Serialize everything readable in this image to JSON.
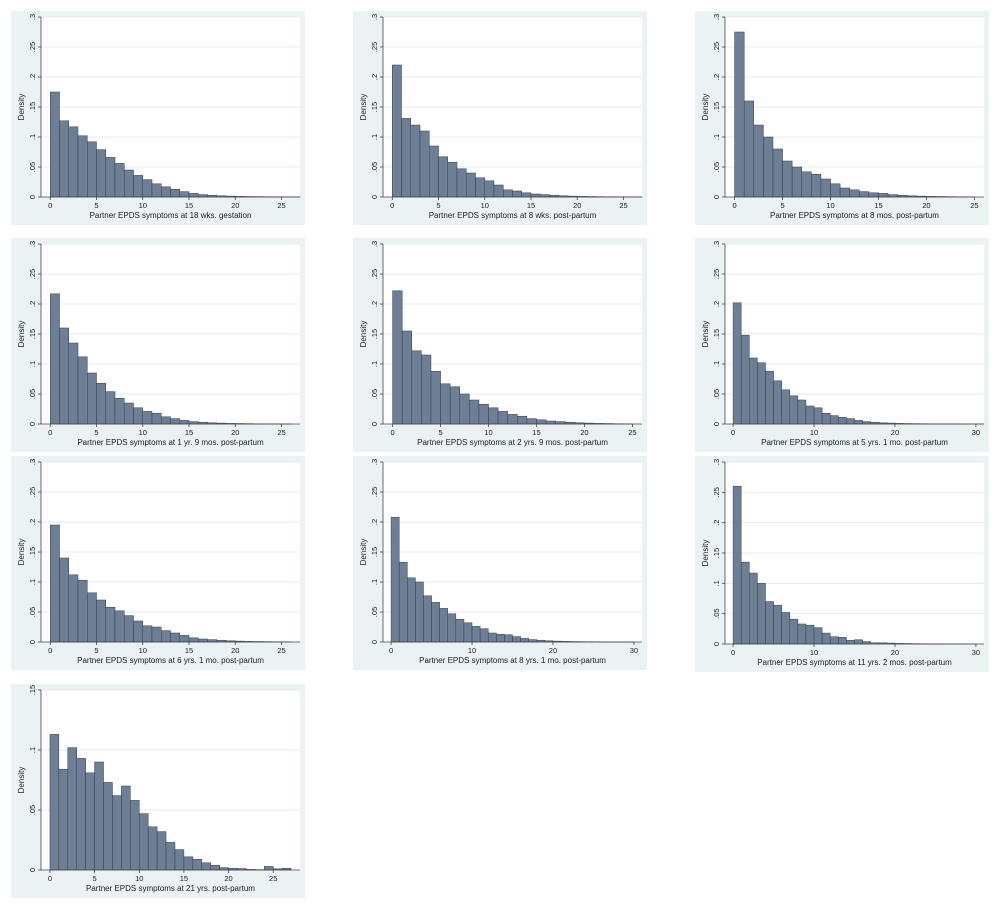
{
  "chart_data": [
    {
      "type": "bar",
      "xlabel": "Partner EPDS symptoms at 18 wks. gestation",
      "ylabel": "Density",
      "ylim": [
        0,
        0.3
      ],
      "yticks": [
        0,
        0.05,
        0.1,
        0.15,
        0.2,
        0.25,
        0.3
      ],
      "ytick_labels": [
        "0",
        ".05",
        ".1",
        ".15",
        ".2",
        ".25",
        ".3"
      ],
      "xlim": [
        -1,
        27
      ],
      "xticks": [
        0,
        5,
        10,
        15,
        20,
        25
      ],
      "bin_width": 1,
      "bin_start": 0,
      "values": [
        0.175,
        0.127,
        0.117,
        0.102,
        0.092,
        0.079,
        0.066,
        0.056,
        0.045,
        0.036,
        0.029,
        0.022,
        0.017,
        0.013,
        0.009,
        0.006,
        0.004,
        0.003,
        0.002,
        0.0015,
        0.001,
        0.0008,
        0.0006,
        0.0004,
        0.0003,
        0.0002,
        0.0001
      ]
    },
    {
      "type": "bar",
      "xlabel": "Partner EPDS symptoms at 8 wks. post-partum",
      "ylabel": "Density",
      "ylim": [
        0,
        0.3
      ],
      "yticks": [
        0,
        0.05,
        0.1,
        0.15,
        0.2,
        0.25,
        0.3
      ],
      "ytick_labels": [
        "0",
        ".05",
        ".1",
        ".15",
        ".2",
        ".25",
        ".3"
      ],
      "xlim": [
        -1,
        27
      ],
      "xticks": [
        0,
        5,
        10,
        15,
        20,
        25
      ],
      "bin_width": 1,
      "bin_start": 0,
      "values": [
        0.22,
        0.131,
        0.12,
        0.11,
        0.085,
        0.067,
        0.058,
        0.047,
        0.04,
        0.032,
        0.027,
        0.02,
        0.012,
        0.01,
        0.007,
        0.005,
        0.004,
        0.003,
        0.002,
        0.0015,
        0.001,
        0.0008,
        0.0006,
        0.0004,
        0.0003,
        0.0002,
        0.0001
      ]
    },
    {
      "type": "bar",
      "xlabel": "Partner EPDS symptoms at 8 mos. post-partum",
      "ylabel": "Density",
      "ylim": [
        0,
        0.3
      ],
      "yticks": [
        0,
        0.05,
        0.1,
        0.15,
        0.2,
        0.25,
        0.3
      ],
      "ytick_labels": [
        "0",
        ".05",
        ".1",
        ".15",
        ".2",
        ".25",
        ".3"
      ],
      "xlim": [
        -1,
        26
      ],
      "xticks": [
        0,
        5,
        10,
        15,
        20,
        25
      ],
      "bin_width": 1,
      "bin_start": 0,
      "values": [
        0.275,
        0.16,
        0.12,
        0.1,
        0.08,
        0.06,
        0.05,
        0.042,
        0.038,
        0.03,
        0.022,
        0.015,
        0.012,
        0.009,
        0.007,
        0.006,
        0.004,
        0.003,
        0.002,
        0.0015,
        0.001,
        0.0008,
        0.0006,
        0.0004,
        0.0002
      ]
    },
    {
      "type": "bar",
      "xlabel": "Partner EPDS symptoms at 1 yr. 9 mos. post-partum",
      "ylabel": "Density",
      "ylim": [
        0,
        0.3
      ],
      "yticks": [
        0,
        0.05,
        0.1,
        0.15,
        0.2,
        0.25,
        0.3
      ],
      "ytick_labels": [
        "0",
        ".05",
        ".1",
        ".15",
        ".2",
        ".25",
        ".3"
      ],
      "xlim": [
        -1,
        27
      ],
      "xticks": [
        0,
        5,
        10,
        15,
        20,
        25
      ],
      "bin_width": 1,
      "bin_start": 0,
      "values": [
        0.217,
        0.16,
        0.135,
        0.112,
        0.085,
        0.068,
        0.054,
        0.043,
        0.035,
        0.027,
        0.021,
        0.018,
        0.012,
        0.009,
        0.006,
        0.004,
        0.003,
        0.002,
        0.0015,
        0.001,
        0.0008,
        0.0006,
        0.0004,
        0.0003,
        0.0002,
        0.0001
      ]
    },
    {
      "type": "bar",
      "xlabel": "Partner EPDS symptoms at 2 yrs. 9 mos. post-partum",
      "ylabel": "Density",
      "ylim": [
        0,
        0.3
      ],
      "yticks": [
        0,
        0.05,
        0.1,
        0.15,
        0.2,
        0.25,
        0.3
      ],
      "ytick_labels": [
        "0",
        ".05",
        ".1",
        ".15",
        ".2",
        ".25",
        ".3"
      ],
      "xlim": [
        -1,
        26
      ],
      "xticks": [
        0,
        5,
        10,
        15,
        20,
        25
      ],
      "bin_width": 1,
      "bin_start": 0,
      "values": [
        0.222,
        0.155,
        0.122,
        0.115,
        0.088,
        0.067,
        0.062,
        0.05,
        0.04,
        0.033,
        0.027,
        0.021,
        0.016,
        0.013,
        0.009,
        0.007,
        0.005,
        0.004,
        0.003,
        0.002,
        0.0015,
        0.001,
        0.0008,
        0.0005,
        0.0003
      ]
    },
    {
      "type": "bar",
      "xlabel": "Partner EPDS symptoms at 5 yrs. 1 mo. post-partum",
      "ylabel": "Density",
      "ylim": [
        0,
        0.3
      ],
      "yticks": [
        0,
        0.05,
        0.1,
        0.15,
        0.2,
        0.25,
        0.3
      ],
      "ytick_labels": [
        "0",
        ".05",
        ".1",
        ".15",
        ".2",
        ".25",
        ".3"
      ],
      "xlim": [
        -1,
        31
      ],
      "xticks": [
        0,
        10,
        20,
        30
      ],
      "bin_width": 1,
      "bin_start": 0,
      "values": [
        0.202,
        0.148,
        0.11,
        0.102,
        0.088,
        0.072,
        0.057,
        0.047,
        0.04,
        0.03,
        0.027,
        0.018,
        0.014,
        0.011,
        0.009,
        0.006,
        0.004,
        0.003,
        0.002,
        0.0015,
        0.001,
        0.0008,
        0.0006,
        0.0005,
        0.0004,
        0.0003,
        0.0002,
        0.0002,
        0.0001,
        0.0001,
        0.0001
      ]
    },
    {
      "type": "bar",
      "xlabel": "Partner EPDS symptoms at 6 yrs. 1 mo. post-partum",
      "ylabel": "Density",
      "ylim": [
        0,
        0.3
      ],
      "yticks": [
        0,
        0.05,
        0.1,
        0.15,
        0.2,
        0.25,
        0.3
      ],
      "ytick_labels": [
        "0",
        ".05",
        ".1",
        ".15",
        ".2",
        ".25",
        ".3"
      ],
      "xlim": [
        -1,
        27
      ],
      "xticks": [
        0,
        5,
        10,
        15,
        20,
        25
      ],
      "bin_width": 1,
      "bin_start": 0,
      "values": [
        0.195,
        0.14,
        0.112,
        0.103,
        0.082,
        0.07,
        0.058,
        0.052,
        0.044,
        0.035,
        0.027,
        0.025,
        0.019,
        0.015,
        0.011,
        0.007,
        0.005,
        0.004,
        0.003,
        0.002,
        0.0015,
        0.001,
        0.0008,
        0.0006,
        0.0004,
        0.0003
      ]
    },
    {
      "type": "bar",
      "xlabel": "Partner EPDS symptoms at 8 yrs. 1 mo. post-partum",
      "ylabel": "Density",
      "ylim": [
        0,
        0.3
      ],
      "yticks": [
        0,
        0.05,
        0.1,
        0.15,
        0.2,
        0.25,
        0.3
      ],
      "ytick_labels": [
        "0",
        ".05",
        ".1",
        ".15",
        ".2",
        ".25",
        ".3"
      ],
      "xlim": [
        -1,
        31
      ],
      "xticks": [
        0,
        10,
        20,
        30
      ],
      "bin_width": 1,
      "bin_start": 0,
      "values": [
        0.208,
        0.133,
        0.107,
        0.1,
        0.077,
        0.066,
        0.056,
        0.047,
        0.038,
        0.032,
        0.026,
        0.022,
        0.015,
        0.013,
        0.012,
        0.009,
        0.006,
        0.004,
        0.003,
        0.002,
        0.0015,
        0.001,
        0.0008,
        0.0006,
        0.0005,
        0.0004,
        0.0003,
        0.0002,
        0.0001,
        0.0001
      ]
    },
    {
      "type": "bar",
      "xlabel": "Partner EPDS symptoms at 11 yrs. 2 mos. post-partum",
      "ylabel": "Density",
      "ylim": [
        0,
        0.3
      ],
      "yticks": [
        0,
        0.05,
        0.1,
        0.15,
        0.2,
        0.25,
        0.3
      ],
      "ytick_labels": [
        "0",
        ".05",
        ".1",
        ".15",
        ".2",
        ".25",
        ".3"
      ],
      "xlim": [
        -1,
        31
      ],
      "xticks": [
        0,
        10,
        20,
        30
      ],
      "bin_width": 1,
      "bin_start": 0,
      "values": [
        0.26,
        0.135,
        0.117,
        0.1,
        0.07,
        0.064,
        0.052,
        0.041,
        0.033,
        0.031,
        0.027,
        0.018,
        0.012,
        0.011,
        0.006,
        0.007,
        0.004,
        0.002,
        0.002,
        0.0015,
        0.001,
        0.0008,
        0.0006,
        0.0005,
        0.0004,
        0.0003,
        0.0002,
        0.0002,
        0.0001,
        0.0001
      ]
    },
    {
      "type": "bar",
      "xlabel": "Partner EPDS symptoms at 21 yrs. post-partum",
      "ylabel": "Density",
      "ylim": [
        0,
        0.15
      ],
      "yticks": [
        0,
        0.05,
        0.1,
        0.15
      ],
      "ytick_labels": [
        "0",
        ".05",
        ".1",
        ".15"
      ],
      "xlim": [
        -1,
        28
      ],
      "xticks": [
        0,
        5,
        10,
        15,
        20,
        25
      ],
      "bin_width": 1,
      "bin_start": 0,
      "values": [
        0.113,
        0.084,
        0.102,
        0.093,
        0.081,
        0.09,
        0.073,
        0.062,
        0.07,
        0.058,
        0.047,
        0.036,
        0.032,
        0.023,
        0.017,
        0.011,
        0.009,
        0.006,
        0.004,
        0.002,
        0.0015,
        0.0012,
        0.0005,
        0.0003,
        0.003,
        0.001,
        0.0015
      ]
    }
  ]
}
